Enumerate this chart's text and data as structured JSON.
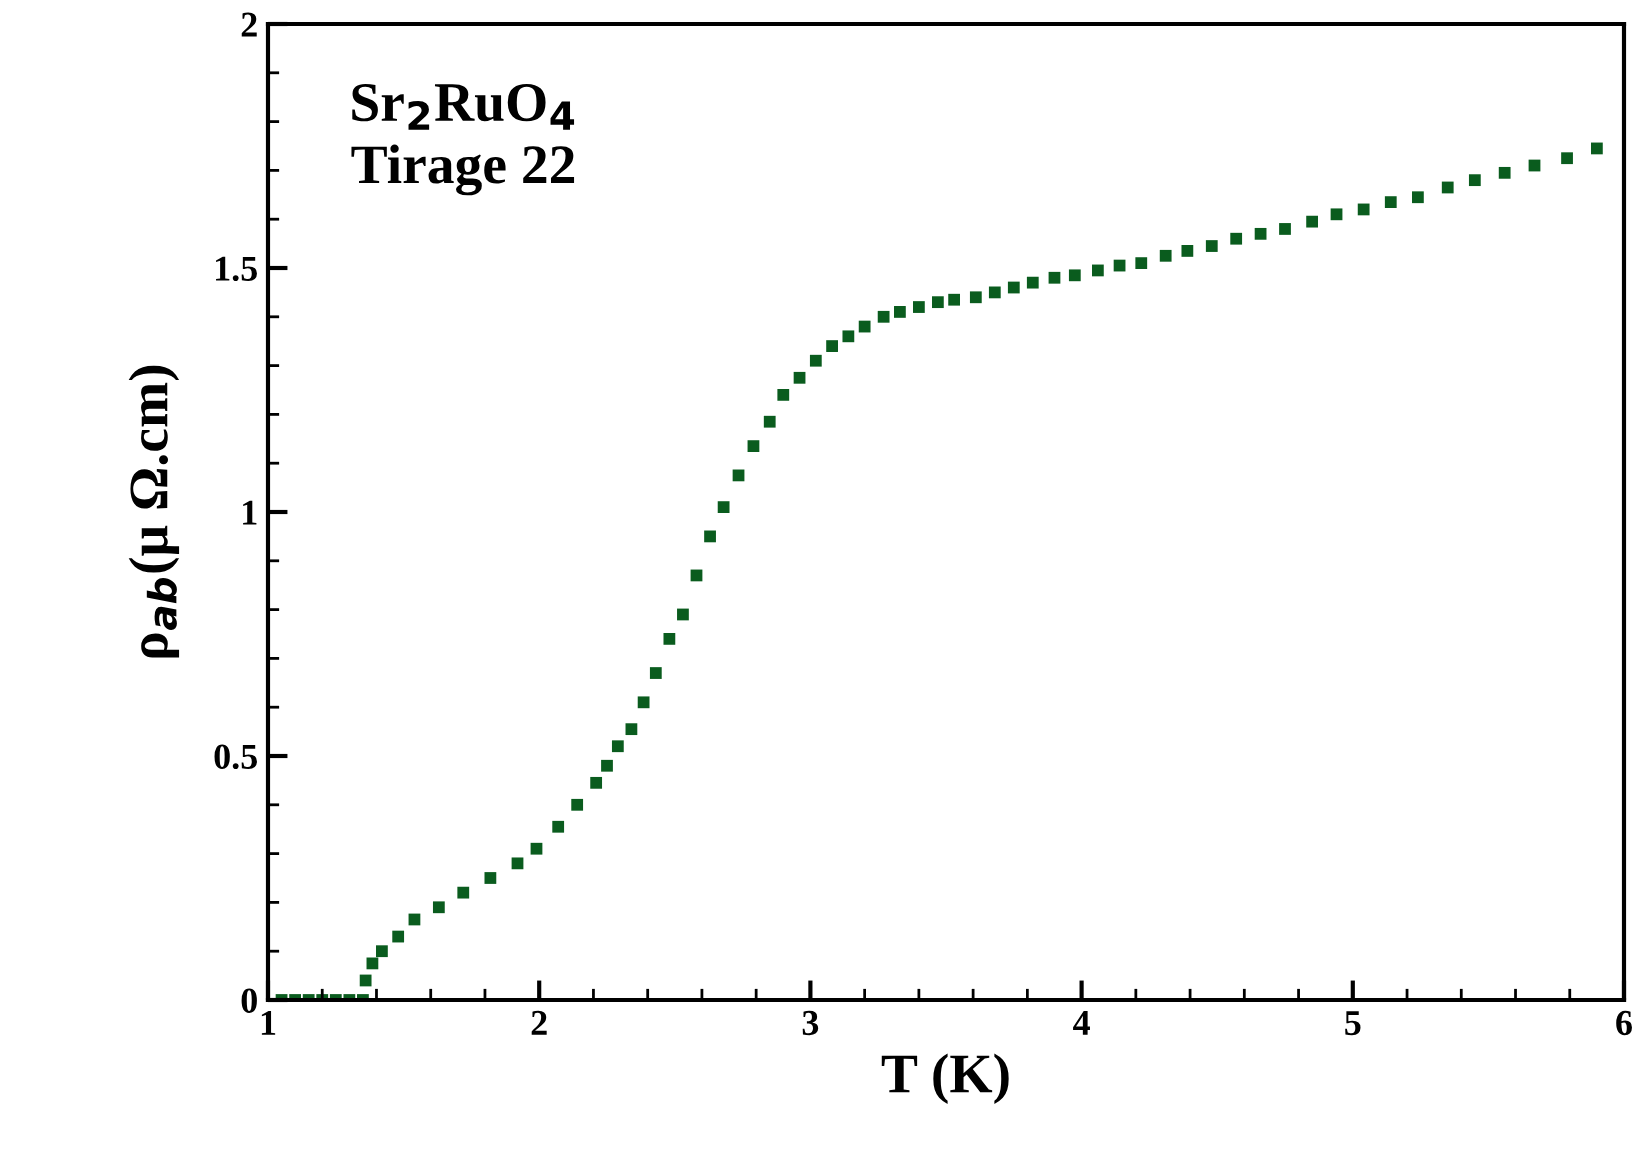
{
  "chart_data": {
    "type": "scatter",
    "xlabel": "T (K)",
    "ylabel": "ρ$_{ab}$(μ Ω.cm)",
    "annotations": [
      "Sr$_{2}$RuO$_{4}$\nTirage 22"
    ],
    "xlim": [
      1,
      6
    ],
    "xticks": [
      1,
      2,
      3,
      4,
      5,
      6
    ],
    "ylim": [
      0,
      2
    ],
    "yticks": [
      0,
      0.5,
      1,
      1.5,
      2
    ],
    "marker": "square",
    "grid": false,
    "legend": false,
    "series": [
      {
        "color": "#0a5c1e",
        "x": [
          1.05,
          1.1,
          1.15,
          1.2,
          1.25,
          1.3,
          1.35,
          1.36,
          1.385,
          1.42,
          1.48,
          1.54,
          1.63,
          1.72,
          1.82,
          1.92,
          1.99,
          2.07,
          2.14,
          2.21,
          2.25,
          2.29,
          2.34,
          2.385,
          2.43,
          2.48,
          2.53,
          2.58,
          2.63,
          2.68,
          2.735,
          2.79,
          2.85,
          2.9,
          2.96,
          3.02,
          3.08,
          3.14,
          3.2,
          3.27,
          3.33,
          3.4,
          3.47,
          3.53,
          3.61,
          3.68,
          3.75,
          3.82,
          3.9,
          3.975,
          4.06,
          4.14,
          4.22,
          4.31,
          4.39,
          4.48,
          4.57,
          4.66,
          4.75,
          4.85,
          4.94,
          5.04,
          5.14,
          5.24,
          5.35,
          5.45,
          5.56,
          5.67,
          5.79,
          5.9
        ],
        "values": [
          0,
          0,
          0,
          0,
          0,
          0,
          0,
          0.04,
          0.075,
          0.1,
          0.13,
          0.165,
          0.19,
          0.22,
          0.25,
          0.28,
          0.31,
          0.355,
          0.4,
          0.445,
          0.48,
          0.52,
          0.555,
          0.61,
          0.67,
          0.74,
          0.79,
          0.87,
          0.95,
          1.01,
          1.075,
          1.135,
          1.185,
          1.24,
          1.275,
          1.31,
          1.34,
          1.36,
          1.38,
          1.4,
          1.41,
          1.42,
          1.43,
          1.435,
          1.44,
          1.45,
          1.46,
          1.47,
          1.48,
          1.485,
          1.495,
          1.505,
          1.51,
          1.525,
          1.535,
          1.545,
          1.56,
          1.57,
          1.58,
          1.595,
          1.61,
          1.62,
          1.635,
          1.645,
          1.665,
          1.68,
          1.695,
          1.71,
          1.725,
          1.745
        ]
      }
    ]
  }
}
